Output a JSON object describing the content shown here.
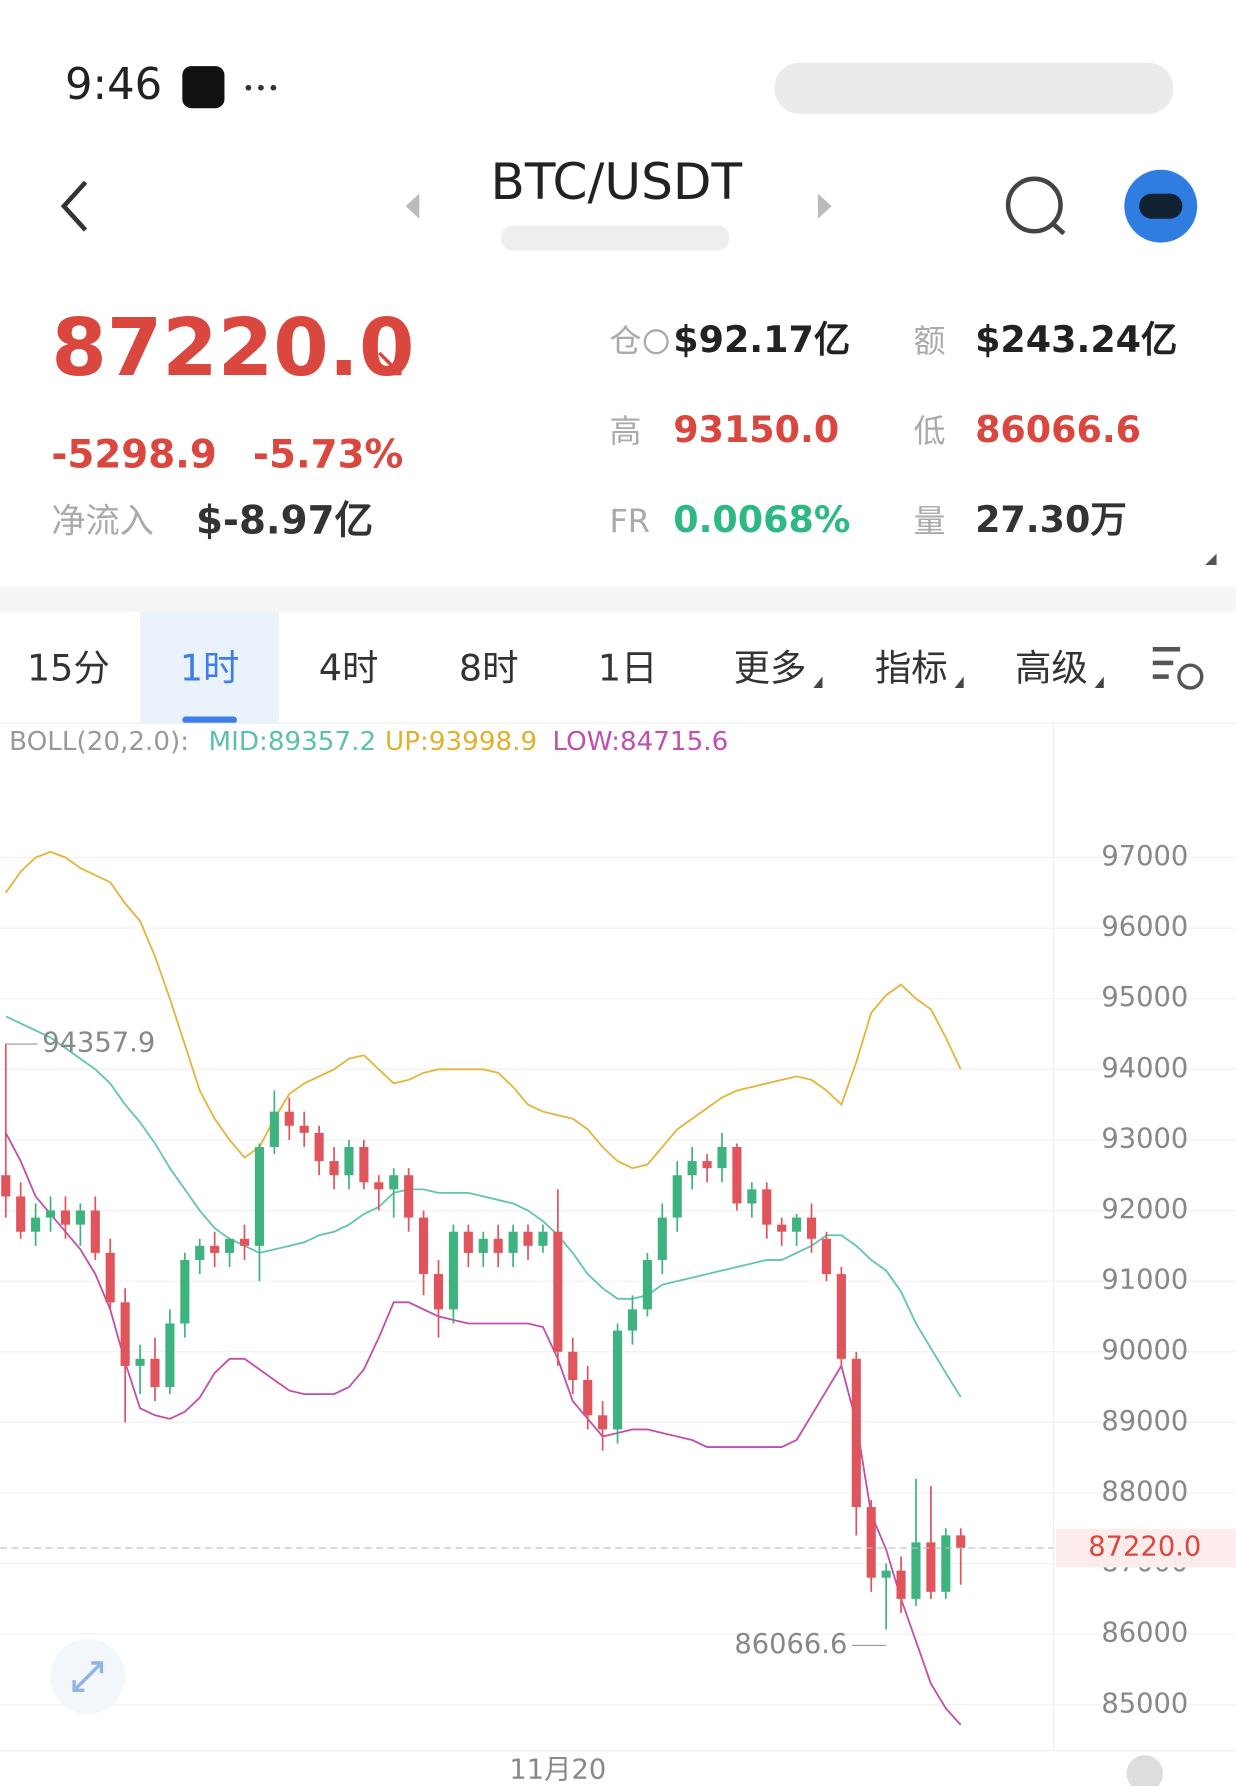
{
  "status_bar": {
    "time": "9:46"
  },
  "header": {
    "pair": "BTC/USDT"
  },
  "summary": {
    "price": "87220.0",
    "change": "-5298.9",
    "change_pct": "-5.73%",
    "net_inflow_label": "净流入",
    "net_inflow": "$-8.97亿",
    "stats": [
      {
        "label": "仓",
        "value": "$92.17亿"
      },
      {
        "label": "额",
        "value": "$243.24亿"
      },
      {
        "label": "高",
        "value": "93150.0"
      },
      {
        "label": "低",
        "value": "86066.6"
      },
      {
        "label": "FR",
        "value": "0.0068%"
      },
      {
        "label": "量",
        "value": "27.30万"
      }
    ]
  },
  "tabs": [
    "15分",
    "1时",
    "4时",
    "8时",
    "1日",
    "更多",
    "指标",
    "高级"
  ],
  "active_tab": 1,
  "indicator": {
    "name": "BOLL(20,2.0):",
    "mid": "MID:89357.2",
    "up": "UP:93998.9",
    "low": "LOW:84715.6"
  },
  "chart_data": {
    "type": "candlestick",
    "categories": [
      null,
      null,
      null,
      null,
      null,
      null,
      null,
      null,
      null,
      null,
      null,
      null,
      null,
      null,
      null,
      null,
      null,
      null,
      null,
      null,
      null,
      null,
      null,
      null,
      null,
      null,
      null,
      null,
      null,
      null,
      null,
      null,
      null,
      null,
      null,
      null,
      null,
      "11月20",
      null,
      null,
      null,
      null,
      null,
      null,
      null,
      null,
      null,
      null,
      null,
      null,
      null,
      null,
      null,
      null,
      null,
      null,
      null,
      null,
      null,
      null,
      null,
      null,
      null,
      null,
      null
    ],
    "open": [
      92500,
      92200,
      91700,
      91900,
      92000,
      91800,
      92000,
      91400,
      90700,
      89800,
      89900,
      89500,
      90400,
      91300,
      91500,
      91400,
      91600,
      91500,
      92900,
      93400,
      93200,
      93100,
      92700,
      92500,
      92900,
      92400,
      92300,
      92500,
      91900,
      91100,
      90600,
      91700,
      91400,
      91600,
      91400,
      91700,
      91500,
      91700,
      90000,
      89600,
      89100,
      88900,
      90300,
      90600,
      91300,
      91900,
      92500,
      92700,
      92600,
      92900,
      92100,
      92300,
      91800,
      91700,
      91900,
      91600,
      91100,
      89900,
      87800,
      86800,
      86900,
      86500,
      87300,
      86600,
      87400
    ],
    "high": [
      94357.9,
      92400,
      92100,
      92200,
      92200,
      92100,
      92200,
      91600,
      90900,
      90100,
      90200,
      90600,
      91400,
      91600,
      91700,
      91600,
      91800,
      92950,
      93700,
      93600,
      93400,
      93200,
      92900,
      93000,
      93000,
      92500,
      92600,
      92600,
      92000,
      91300,
      91800,
      91800,
      91700,
      91800,
      91800,
      91800,
      91800,
      92300,
      90200,
      89800,
      89300,
      90400,
      90800,
      91400,
      92100,
      92700,
      92900,
      92800,
      93100,
      92950,
      92400,
      92400,
      91900,
      91950,
      92100,
      91700,
      91200,
      90000,
      87900,
      87000,
      87100,
      88200,
      88100,
      87500,
      87500
    ],
    "low": [
      91900,
      91600,
      91500,
      91700,
      91600,
      91500,
      91300,
      90600,
      89000,
      89400,
      89300,
      89400,
      90200,
      91100,
      91200,
      91200,
      91300,
      91000,
      92800,
      93000,
      92900,
      92500,
      92300,
      92300,
      92300,
      92000,
      91900,
      91700,
      90800,
      90200,
      90400,
      91200,
      91200,
      91200,
      91200,
      91300,
      91400,
      89800,
      89400,
      88900,
      88600,
      88700,
      90100,
      90500,
      91100,
      91700,
      92300,
      92400,
      92400,
      92000,
      91900,
      91600,
      91500,
      91500,
      91400,
      91000,
      89800,
      87400,
      86600,
      86066.6,
      86300,
      86400,
      86500,
      86500,
      86700
    ],
    "close": [
      92200,
      91700,
      91900,
      92000,
      91800,
      92000,
      91400,
      90700,
      89800,
      89900,
      89500,
      90400,
      91300,
      91500,
      91400,
      91600,
      91500,
      92900,
      93400,
      93200,
      93100,
      92700,
      92500,
      92900,
      92400,
      92300,
      92500,
      91900,
      91100,
      90600,
      91700,
      91400,
      91600,
      91400,
      91700,
      91500,
      91700,
      90000,
      89600,
      89100,
      88900,
      90300,
      90600,
      91300,
      91900,
      92500,
      92700,
      92600,
      92900,
      92100,
      92300,
      91800,
      91700,
      91900,
      91600,
      91100,
      89900,
      87800,
      86800,
      86900,
      86500,
      87300,
      86600,
      87400,
      87220
    ],
    "up_color": "#3fb37f",
    "down_color": "#e0545c",
    "series": [
      {
        "color": "#e3b53c",
        "values": [
          96500,
          96800,
          97000,
          97080,
          97000,
          96850,
          96750,
          96650,
          96350,
          96100,
          95600,
          95000,
          94350,
          93700,
          93300,
          93000,
          92750,
          92900,
          93300,
          93650,
          93800,
          93900,
          94000,
          94150,
          94200,
          94000,
          93800,
          93850,
          93950,
          94000,
          94000,
          94000,
          94000,
          93950,
          93750,
          93500,
          93400,
          93350,
          93300,
          93150,
          92900,
          92700,
          92600,
          92650,
          92900,
          93150,
          93300,
          93450,
          93600,
          93700,
          93750,
          93800,
          93850,
          93900,
          93850,
          93700,
          93500,
          94100,
          94800,
          95050,
          95200,
          95000,
          94850,
          94450,
          93998.9
        ]
      },
      {
        "color": "#62c4b4",
        "values": [
          94750,
          94650,
          94550,
          94450,
          94300,
          94150,
          94000,
          93800,
          93500,
          93250,
          92950,
          92600,
          92300,
          92000,
          91750,
          91600,
          91500,
          91400,
          91450,
          91500,
          91550,
          91650,
          91700,
          91800,
          91950,
          92050,
          92250,
          92300,
          92300,
          92250,
          92250,
          92250,
          92200,
          92150,
          92100,
          92000,
          91850,
          91650,
          91400,
          91100,
          90900,
          90750,
          90750,
          90800,
          90950,
          91000,
          91050,
          91100,
          91150,
          91200,
          91250,
          91300,
          91300,
          91400,
          91500,
          91650,
          91650,
          91500,
          91300,
          91150,
          90850,
          90400,
          90050,
          89700,
          89357.2
        ]
      },
      {
        "color": "#c04fae",
        "values": [
          93100,
          92700,
          92200,
          91950,
          91700,
          91450,
          91100,
          90600,
          89850,
          89200,
          89100,
          89050,
          89150,
          89350,
          89700,
          89900,
          89900,
          89750,
          89600,
          89450,
          89400,
          89400,
          89400,
          89500,
          89750,
          90200,
          90700,
          90700,
          90600,
          90500,
          90450,
          90400,
          90400,
          90400,
          90400,
          90400,
          90350,
          89900,
          89300,
          89050,
          88800,
          88850,
          88900,
          88900,
          88850,
          88800,
          88750,
          88650,
          88650,
          88650,
          88650,
          88650,
          88650,
          88750,
          89100,
          89450,
          89800,
          89000,
          87700,
          87200,
          86500,
          85900,
          85300,
          84950,
          84715.6
        ]
      }
    ],
    "last_price": {
      "value": 87220,
      "label": "87220.0"
    },
    "ylim": [
      84350,
      98820
    ],
    "yticks": [
      85000,
      86000,
      87000,
      88000,
      89000,
      90000,
      91000,
      92000,
      93000,
      94000,
      95000,
      96000,
      97000
    ],
    "grid": true
  }
}
